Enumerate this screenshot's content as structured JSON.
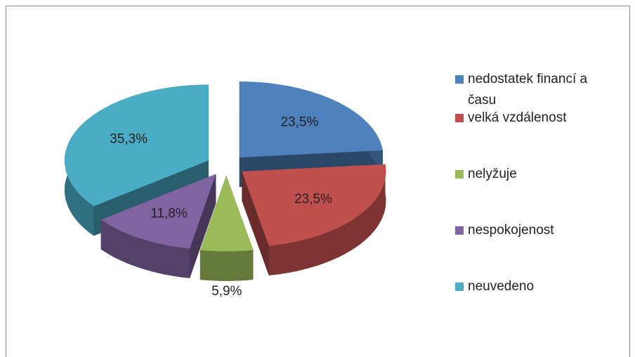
{
  "chart_data": {
    "type": "pie",
    "categories": [
      "nedostatek financí a času",
      "velká vzdálenost",
      "nelyžuje",
      "nespokojenost",
      "neuvedeno"
    ],
    "values": [
      23.5,
      23.5,
      5.9,
      11.8,
      35.3
    ],
    "value_labels": [
      "23,5%",
      "23,5%",
      "5,9%",
      "11,8%",
      "35,3%"
    ],
    "colors": [
      "#4f81bd",
      "#c0504d",
      "#9bbb59",
      "#8064a2",
      "#4bacc6"
    ],
    "legend": "right"
  }
}
